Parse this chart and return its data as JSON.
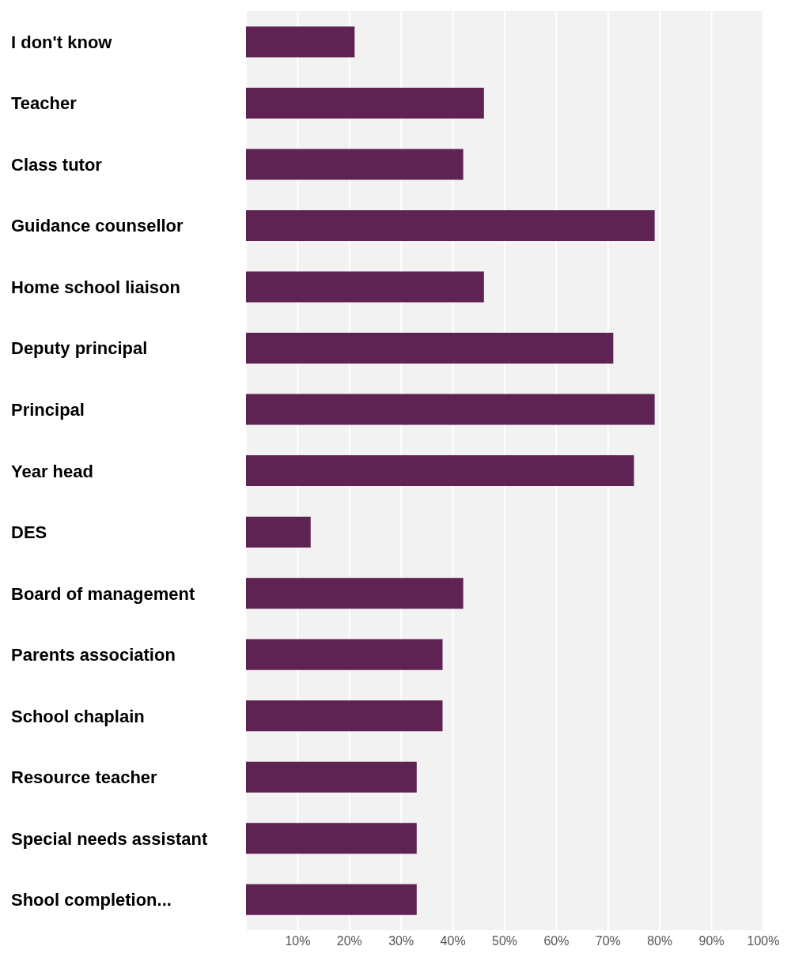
{
  "chart_data": {
    "type": "bar",
    "orientation": "horizontal",
    "categories": [
      "I don't know",
      "Teacher",
      "Class tutor",
      "Guidance counsellor",
      "Home school liaison",
      "Deputy principal",
      "Principal",
      "Year head",
      "DES",
      "Board of management",
      "Parents association",
      "School chaplain",
      "Resource teacher",
      "Special needs assistant",
      "Shool completion..."
    ],
    "values": [
      21,
      46,
      42,
      79,
      46,
      71,
      79,
      75,
      12.5,
      42,
      38,
      38,
      33,
      33,
      33
    ],
    "color": "#5e2352",
    "xlim": [
      0,
      100
    ],
    "xticks": [
      {
        "value": 10,
        "label": "10%"
      },
      {
        "value": 20,
        "label": "20%"
      },
      {
        "value": 30,
        "label": "30%"
      },
      {
        "value": 40,
        "label": "40%"
      },
      {
        "value": 50,
        "label": "50%"
      },
      {
        "value": 60,
        "label": "60%"
      },
      {
        "value": 70,
        "label": "70%"
      },
      {
        "value": 80,
        "label": "80%"
      },
      {
        "value": 90,
        "label": "90%"
      },
      {
        "value": 100,
        "label": "100%"
      }
    ],
    "grid": "x"
  }
}
